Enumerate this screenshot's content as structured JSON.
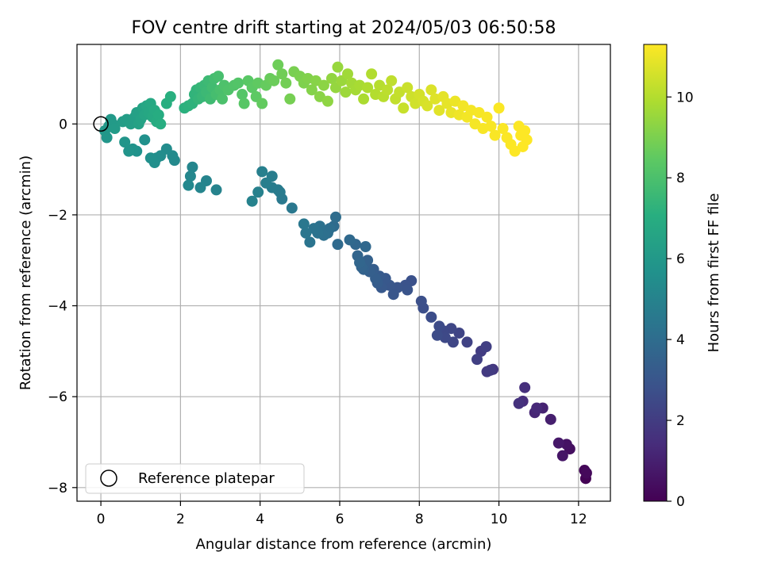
{
  "chart_data": {
    "type": "scatter",
    "title": "FOV centre drift starting at 2024/05/03 06:50:58",
    "xlabel": "Angular distance from reference (arcmin)",
    "ylabel": "Rotation from reference (arcmin)",
    "xlim": [
      -0.6,
      12.8
    ],
    "ylim": [
      -8.3,
      1.75
    ],
    "xticks": [
      0,
      2,
      4,
      6,
      8,
      10,
      12
    ],
    "yticks": [
      -8,
      -6,
      -4,
      -2,
      0
    ],
    "grid": true,
    "legend": {
      "placement": "lower-left",
      "entries": [
        "Reference platepar"
      ]
    },
    "reference_point": {
      "x": 0,
      "y": 0
    },
    "colorbar": {
      "label": "Hours from first FF file",
      "colormap": "viridis",
      "range": [
        0,
        11.3
      ],
      "ticks": [
        0,
        2,
        4,
        6,
        8,
        10
      ]
    },
    "points": [
      [
        12.18,
        -7.8,
        0.05
      ],
      [
        12.15,
        -7.62,
        0.15
      ],
      [
        12.2,
        -7.68,
        0.25
      ],
      [
        11.78,
        -7.15,
        0.45
      ],
      [
        11.7,
        -7.05,
        0.55
      ],
      [
        11.6,
        -7.3,
        0.65
      ],
      [
        11.5,
        -7.02,
        0.75
      ],
      [
        11.3,
        -6.5,
        0.95
      ],
      [
        11.1,
        -6.25,
        1.1
      ],
      [
        10.9,
        -6.35,
        1.2
      ],
      [
        10.95,
        -6.25,
        1.3
      ],
      [
        10.6,
        -6.1,
        1.4
      ],
      [
        10.65,
        -5.8,
        1.5
      ],
      [
        10.5,
        -6.15,
        1.6
      ],
      [
        9.85,
        -5.4,
        1.8
      ],
      [
        9.7,
        -5.45,
        1.9
      ],
      [
        9.78,
        -5.42,
        1.95
      ],
      [
        9.55,
        -5.0,
        2.0
      ],
      [
        9.68,
        -4.9,
        2.1
      ],
      [
        9.45,
        -5.18,
        2.15
      ],
      [
        9.2,
        -4.8,
        2.2
      ],
      [
        9.0,
        -4.6,
        2.3
      ],
      [
        8.85,
        -4.8,
        2.35
      ],
      [
        8.8,
        -4.5,
        2.4
      ],
      [
        8.6,
        -4.55,
        2.45
      ],
      [
        8.65,
        -4.7,
        2.5
      ],
      [
        8.5,
        -4.45,
        2.55
      ],
      [
        8.45,
        -4.65,
        2.6
      ],
      [
        8.3,
        -4.25,
        2.65
      ],
      [
        8.1,
        -4.05,
        2.7
      ],
      [
        8.05,
        -3.9,
        2.75
      ],
      [
        7.8,
        -3.45,
        2.8
      ],
      [
        7.65,
        -3.55,
        2.85
      ],
      [
        7.7,
        -3.65,
        2.9
      ],
      [
        7.45,
        -3.6,
        2.95
      ],
      [
        7.35,
        -3.75,
        3.0
      ],
      [
        7.25,
        -3.55,
        3.05
      ],
      [
        7.15,
        -3.4,
        3.1
      ],
      [
        7.05,
        -3.6,
        3.15
      ],
      [
        7.0,
        -3.35,
        3.2
      ],
      [
        6.95,
        -3.5,
        3.25
      ],
      [
        6.85,
        -3.2,
        3.3
      ],
      [
        6.9,
        -3.4,
        3.35
      ],
      [
        6.75,
        -3.25,
        3.4
      ],
      [
        6.65,
        -3.1,
        3.45
      ],
      [
        6.7,
        -3.0,
        3.5
      ],
      [
        6.6,
        -3.2,
        3.55
      ],
      [
        6.55,
        -3.15,
        3.6
      ],
      [
        6.45,
        -2.9,
        3.65
      ],
      [
        6.5,
        -3.05,
        3.7
      ],
      [
        6.4,
        -2.65,
        3.75
      ],
      [
        6.65,
        -2.7,
        3.8
      ],
      [
        6.25,
        -2.55,
        3.85
      ],
      [
        5.95,
        -2.65,
        3.9
      ],
      [
        5.85,
        -2.25,
        3.95
      ],
      [
        5.9,
        -2.05,
        4.0
      ],
      [
        5.75,
        -2.3,
        4.05
      ],
      [
        5.7,
        -2.4,
        4.1
      ],
      [
        5.6,
        -2.45,
        4.15
      ],
      [
        5.5,
        -2.25,
        4.2
      ],
      [
        5.45,
        -2.4,
        4.25
      ],
      [
        5.35,
        -2.3,
        4.3
      ],
      [
        5.25,
        -2.6,
        4.35
      ],
      [
        5.15,
        -2.4,
        4.4
      ],
      [
        5.1,
        -2.2,
        4.45
      ],
      [
        4.8,
        -1.85,
        4.5
      ],
      [
        4.55,
        -1.65,
        4.55
      ],
      [
        4.5,
        -1.5,
        4.6
      ],
      [
        4.45,
        -1.45,
        4.65
      ],
      [
        4.3,
        -1.4,
        4.7
      ],
      [
        4.3,
        -1.15,
        4.75
      ],
      [
        4.15,
        -1.3,
        4.8
      ],
      [
        4.05,
        -1.05,
        4.85
      ],
      [
        3.95,
        -1.5,
        4.9
      ],
      [
        3.8,
        -1.7,
        4.95
      ],
      [
        2.9,
        -1.45,
        5.0
      ],
      [
        2.65,
        -1.25,
        5.05
      ],
      [
        2.5,
        -1.4,
        5.1
      ],
      [
        2.3,
        -0.95,
        5.15
      ],
      [
        2.25,
        -1.15,
        5.2
      ],
      [
        2.2,
        -1.35,
        5.25
      ],
      [
        1.85,
        -0.8,
        5.3
      ],
      [
        1.8,
        -0.7,
        5.35
      ],
      [
        1.65,
        -0.55,
        5.4
      ],
      [
        1.5,
        -0.7,
        5.45
      ],
      [
        1.4,
        -0.75,
        5.5
      ],
      [
        1.35,
        -0.85,
        5.55
      ],
      [
        1.25,
        -0.75,
        5.6
      ],
      [
        1.1,
        -0.35,
        5.65
      ],
      [
        0.9,
        -0.6,
        5.7
      ],
      [
        0.8,
        -0.55,
        5.75
      ],
      [
        0.7,
        -0.6,
        5.8
      ],
      [
        0.6,
        -0.4,
        5.85
      ],
      [
        0.15,
        -0.3,
        5.9
      ],
      [
        0.1,
        -0.15,
        5.95
      ],
      [
        0.2,
        -0.05,
        6.0
      ],
      [
        0.25,
        0.1,
        6.05
      ],
      [
        0.3,
        0.0,
        6.1
      ],
      [
        0.35,
        -0.1,
        6.15
      ],
      [
        0.55,
        0.05,
        6.2
      ],
      [
        0.65,
        0.1,
        6.25
      ],
      [
        0.75,
        0.0,
        6.3
      ],
      [
        0.85,
        0.15,
        6.35
      ],
      [
        0.9,
        0.25,
        6.4
      ],
      [
        0.95,
        0.0,
        6.45
      ],
      [
        1.0,
        0.1,
        6.5
      ],
      [
        1.05,
        0.35,
        6.55
      ],
      [
        1.1,
        0.2,
        6.6
      ],
      [
        1.15,
        0.4,
        6.65
      ],
      [
        1.2,
        0.25,
        6.7
      ],
      [
        1.25,
        0.45,
        6.75
      ],
      [
        1.3,
        0.15,
        6.8
      ],
      [
        1.35,
        0.3,
        6.85
      ],
      [
        1.4,
        0.05,
        6.9
      ],
      [
        1.45,
        0.2,
        6.95
      ],
      [
        1.5,
        0.0,
        7.0
      ],
      [
        1.65,
        0.45,
        7.05
      ],
      [
        1.75,
        0.6,
        7.1
      ],
      [
        2.1,
        0.35,
        7.15
      ],
      [
        2.2,
        0.4,
        7.2
      ],
      [
        2.3,
        0.45,
        7.25
      ],
      [
        2.35,
        0.65,
        7.3
      ],
      [
        2.4,
        0.75,
        7.35
      ],
      [
        2.45,
        0.55,
        7.4
      ],
      [
        2.5,
        0.8,
        7.45
      ],
      [
        2.55,
        0.6,
        7.5
      ],
      [
        2.6,
        0.85,
        7.55
      ],
      [
        2.65,
        0.7,
        7.6
      ],
      [
        2.7,
        0.95,
        7.65
      ],
      [
        2.75,
        0.55,
        7.7
      ],
      [
        2.8,
        0.8,
        7.75
      ],
      [
        2.85,
        1.0,
        7.8
      ],
      [
        2.9,
        0.65,
        7.85
      ],
      [
        2.95,
        1.05,
        7.9
      ],
      [
        3.0,
        0.75,
        7.95
      ],
      [
        3.05,
        0.55,
        8.0
      ],
      [
        3.1,
        0.85,
        8.05
      ],
      [
        3.2,
        0.75,
        8.1
      ],
      [
        3.35,
        0.85,
        8.15
      ],
      [
        3.45,
        0.9,
        8.2
      ],
      [
        3.55,
        0.65,
        8.25
      ],
      [
        3.6,
        0.45,
        8.3
      ],
      [
        3.7,
        0.95,
        8.35
      ],
      [
        3.8,
        0.8,
        8.4
      ],
      [
        3.9,
        0.6,
        8.45
      ],
      [
        3.95,
        0.9,
        8.5
      ],
      [
        4.05,
        0.45,
        8.55
      ],
      [
        4.15,
        0.85,
        8.6
      ],
      [
        4.25,
        1.0,
        8.65
      ],
      [
        4.35,
        0.95,
        8.7
      ],
      [
        4.45,
        1.3,
        8.75
      ],
      [
        4.55,
        1.1,
        8.8
      ],
      [
        4.65,
        0.9,
        8.85
      ],
      [
        4.75,
        0.55,
        8.9
      ],
      [
        4.85,
        1.15,
        8.95
      ],
      [
        5.0,
        1.05,
        9.0
      ],
      [
        5.1,
        0.9,
        9.05
      ],
      [
        5.2,
        1.0,
        9.1
      ],
      [
        5.3,
        0.75,
        9.15
      ],
      [
        5.4,
        0.95,
        9.2
      ],
      [
        5.5,
        0.6,
        9.25
      ],
      [
        5.6,
        0.85,
        9.3
      ],
      [
        5.7,
        0.5,
        9.35
      ],
      [
        5.8,
        1.0,
        9.4
      ],
      [
        5.9,
        0.8,
        9.45
      ],
      [
        5.95,
        1.25,
        9.5
      ],
      [
        6.05,
        0.95,
        9.55
      ],
      [
        6.15,
        0.7,
        9.6
      ],
      [
        6.2,
        1.1,
        9.65
      ],
      [
        6.3,
        0.9,
        9.7
      ],
      [
        6.4,
        0.75,
        9.75
      ],
      [
        6.5,
        0.85,
        9.8
      ],
      [
        6.6,
        0.55,
        9.85
      ],
      [
        6.7,
        0.8,
        9.9
      ],
      [
        6.8,
        1.1,
        9.95
      ],
      [
        6.9,
        0.65,
        10.0
      ],
      [
        7.0,
        0.85,
        10.05
      ],
      [
        7.1,
        0.6,
        10.1
      ],
      [
        7.2,
        0.75,
        10.15
      ],
      [
        7.3,
        0.95,
        10.2
      ],
      [
        7.4,
        0.55,
        10.25
      ],
      [
        7.5,
        0.7,
        10.3
      ],
      [
        7.6,
        0.35,
        10.35
      ],
      [
        7.7,
        0.8,
        10.4
      ],
      [
        7.8,
        0.6,
        10.45
      ],
      [
        7.9,
        0.45,
        10.5
      ],
      [
        8.0,
        0.65,
        10.55
      ],
      [
        8.1,
        0.5,
        10.6
      ],
      [
        8.2,
        0.4,
        10.65
      ],
      [
        8.3,
        0.75,
        10.7
      ],
      [
        8.4,
        0.55,
        10.75
      ],
      [
        8.5,
        0.3,
        10.8
      ],
      [
        8.6,
        0.6,
        10.85
      ],
      [
        8.7,
        0.45,
        10.9
      ],
      [
        8.8,
        0.25,
        10.95
      ],
      [
        8.9,
        0.5,
        11.0
      ],
      [
        9.0,
        0.2,
        11.05
      ],
      [
        9.1,
        0.4,
        11.1
      ],
      [
        9.2,
        0.15,
        11.12
      ],
      [
        9.3,
        0.3,
        11.14
      ],
      [
        9.4,
        0.0,
        11.16
      ],
      [
        9.5,
        0.25,
        11.18
      ],
      [
        9.6,
        -0.1,
        11.2
      ],
      [
        9.7,
        0.15,
        11.21
      ],
      [
        9.8,
        -0.05,
        11.22
      ],
      [
        9.9,
        -0.25,
        11.23
      ],
      [
        10.0,
        0.35,
        11.24
      ],
      [
        10.1,
        -0.1,
        11.25
      ],
      [
        10.2,
        -0.3,
        11.26
      ],
      [
        10.3,
        -0.45,
        11.27
      ],
      [
        10.4,
        -0.6,
        11.28
      ],
      [
        10.5,
        -0.05,
        11.29
      ],
      [
        10.55,
        -0.25,
        11.3
      ],
      [
        10.6,
        -0.5,
        11.3
      ],
      [
        10.7,
        -0.35,
        11.3
      ],
      [
        10.65,
        -0.15,
        11.3
      ]
    ]
  }
}
